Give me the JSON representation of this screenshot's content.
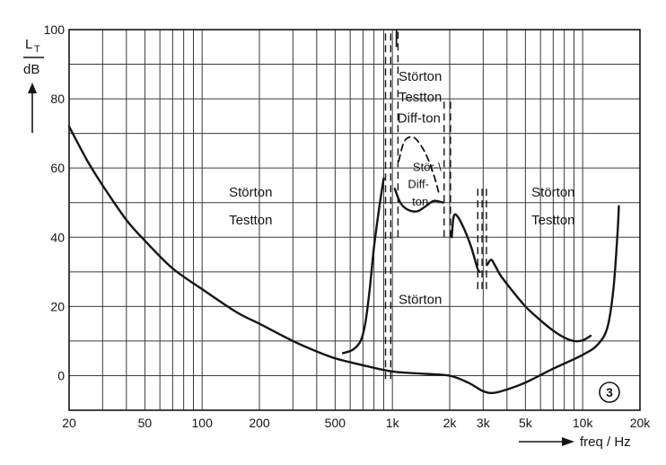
{
  "chart_data": {
    "type": "line",
    "x_scale": "log",
    "xlim": [
      20,
      20000
    ],
    "ylim": [
      -10,
      100
    ],
    "grid": true,
    "xlabel": "freq / Hz",
    "ylabel_top": "L",
    "ylabel_sub": "T",
    "ylabel_bottom": "dB",
    "y_ticks": [
      {
        "value": 0,
        "label": "0"
      },
      {
        "value": 20,
        "label": "20"
      },
      {
        "value": 40,
        "label": "40"
      },
      {
        "value": 60,
        "label": "60"
      },
      {
        "value": 80,
        "label": "80"
      },
      {
        "value": 100,
        "label": "100"
      }
    ],
    "x_ticks": [
      {
        "value": 20,
        "label": "20"
      },
      {
        "value": 50,
        "label": "50"
      },
      {
        "value": 100,
        "label": "100"
      },
      {
        "value": 200,
        "label": "200"
      },
      {
        "value": 500,
        "label": "500"
      },
      {
        "value": 1000,
        "label": "1k"
      },
      {
        "value": 2000,
        "label": "2k"
      },
      {
        "value": 3000,
        "label": "3k"
      },
      {
        "value": 5000,
        "label": "5k"
      },
      {
        "value": 10000,
        "label": "10k"
      },
      {
        "value": 20000,
        "label": "20k"
      }
    ],
    "x_gridlines": [
      20,
      30,
      40,
      50,
      60,
      70,
      80,
      90,
      100,
      200,
      300,
      400,
      500,
      600,
      700,
      800,
      900,
      1000,
      2000,
      3000,
      4000,
      5000,
      6000,
      7000,
      8000,
      9000,
      10000,
      20000
    ],
    "y_gridlines": [
      0,
      10,
      20,
      30,
      40,
      50,
      60,
      70,
      80,
      90,
      100
    ],
    "series": [
      {
        "style": "solid",
        "points": [
          [
            20,
            72
          ],
          [
            25,
            62
          ],
          [
            30,
            55
          ],
          [
            40,
            45
          ],
          [
            50,
            39
          ],
          [
            70,
            31
          ],
          [
            100,
            25
          ],
          [
            150,
            18.5
          ],
          [
            200,
            15
          ],
          [
            300,
            10
          ],
          [
            400,
            7
          ],
          [
            500,
            5
          ],
          [
            700,
            3
          ],
          [
            1000,
            1.2
          ],
          [
            1500,
            0.5
          ],
          [
            2000,
            0
          ],
          [
            2500,
            -2
          ],
          [
            3000,
            -4.5
          ],
          [
            3400,
            -5
          ],
          [
            4000,
            -4
          ],
          [
            5000,
            -2
          ],
          [
            7000,
            2
          ],
          [
            10000,
            6
          ],
          [
            12000,
            9
          ],
          [
            13500,
            14
          ],
          [
            14500,
            25
          ],
          [
            15200,
            40
          ],
          [
            15500,
            49
          ]
        ]
      },
      {
        "style": "solid",
        "points": [
          [
            550,
            6.5
          ],
          [
            620,
            7.5
          ],
          [
            680,
            10
          ],
          [
            720,
            15
          ],
          [
            760,
            25
          ],
          [
            800,
            37
          ],
          [
            850,
            48
          ],
          [
            900,
            57
          ]
        ]
      },
      {
        "style": "solid",
        "points": [
          [
            1030,
            54
          ],
          [
            1100,
            50
          ],
          [
            1200,
            48
          ],
          [
            1350,
            47.5
          ],
          [
            1500,
            49
          ],
          [
            1650,
            50.5
          ],
          [
            1850,
            50
          ]
        ]
      },
      {
        "style": "dashed",
        "points": [
          [
            1080,
            62
          ],
          [
            1150,
            67.5
          ],
          [
            1250,
            69
          ],
          [
            1350,
            68
          ],
          [
            1500,
            64
          ],
          [
            1650,
            58
          ],
          [
            1750,
            53
          ]
        ]
      },
      {
        "style": "solid",
        "points": [
          [
            2050,
            40
          ],
          [
            2100,
            46
          ],
          [
            2200,
            46
          ],
          [
            2400,
            42
          ],
          [
            2600,
            37
          ],
          [
            2800,
            31
          ],
          [
            2880,
            30
          ]
        ]
      },
      {
        "style": "solid",
        "points": [
          [
            3150,
            32
          ],
          [
            3300,
            33.5
          ],
          [
            3450,
            32
          ],
          [
            3700,
            29
          ],
          [
            4200,
            25
          ],
          [
            5000,
            20
          ],
          [
            6000,
            16
          ],
          [
            7000,
            13
          ],
          [
            8000,
            11
          ],
          [
            9000,
            10
          ],
          [
            10000,
            10.2
          ],
          [
            11000,
            11.5
          ]
        ]
      }
    ],
    "dashed_verticals": [
      {
        "x": 920,
        "y": [
          -1,
          100
        ]
      },
      {
        "x": 980,
        "y": [
          -1,
          100
        ]
      },
      {
        "x": 1070,
        "y": [
          40,
          100
        ]
      },
      {
        "x": 1870,
        "y": [
          40,
          80
        ]
      },
      {
        "x": 2020,
        "y": [
          40,
          80
        ]
      },
      {
        "x": 2810,
        "y": [
          25,
          54
        ]
      },
      {
        "x": 2960,
        "y": [
          25,
          54
        ]
      },
      {
        "x": 3120,
        "y": [
          25,
          54
        ]
      }
    ],
    "solid_verticals": [
      {
        "x": 1050,
        "y": [
          95,
          100
        ]
      }
    ],
    "annotations": [
      {
        "text": "Störton",
        "x": 180,
        "y": 53,
        "size": "normal",
        "anchor": "middle"
      },
      {
        "text": "Testton",
        "x": 180,
        "y": 45,
        "size": "normal",
        "anchor": "middle"
      },
      {
        "text": "Störton",
        "x": 1400,
        "y": 86.5,
        "size": "normal",
        "anchor": "middle"
      },
      {
        "text": "Testton",
        "x": 1400,
        "y": 80.5,
        "size": "normal",
        "anchor": "middle"
      },
      {
        "text": "Diff-ton",
        "x": 1380,
        "y": 74.5,
        "size": "normal",
        "anchor": "middle"
      },
      {
        "text": "Stör-\\",
        "x": 1280,
        "y": 60.5,
        "size": "small",
        "anchor": "start"
      },
      {
        "text": "Diff-",
        "x": 1370,
        "y": 55.5,
        "size": "small",
        "anchor": "middle"
      },
      {
        "text": "ton",
        "x": 1400,
        "y": 50.5,
        "size": "small",
        "anchor": "middle"
      },
      {
        "text": "Störton",
        "x": 1400,
        "y": 22,
        "size": "normal",
        "anchor": "middle"
      },
      {
        "text": "Störton",
        "x": 7000,
        "y": 53,
        "size": "normal",
        "anchor": "middle"
      },
      {
        "text": "Testton",
        "x": 7000,
        "y": 45,
        "size": "normal",
        "anchor": "middle"
      }
    ],
    "figure_number": "3"
  }
}
